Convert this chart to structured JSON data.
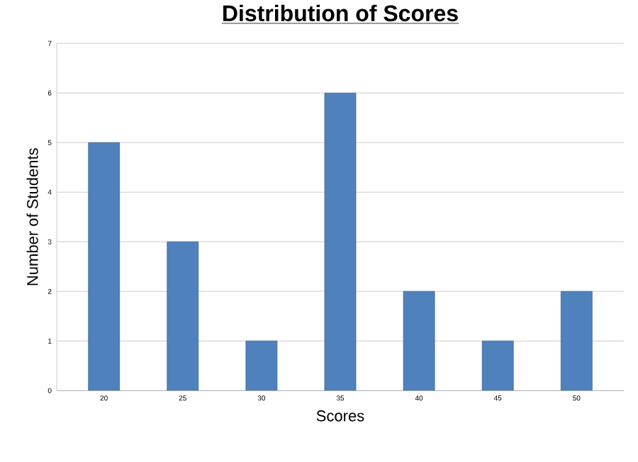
{
  "chart_data": {
    "type": "bar",
    "title": "Distribution of Scores",
    "xlabel": "Scores",
    "ylabel": "Number of Students",
    "categories": [
      "20",
      "25",
      "30",
      "35",
      "40",
      "45",
      "50"
    ],
    "values": [
      5,
      3,
      1,
      6,
      2,
      1,
      2
    ],
    "color": "#4f81bd",
    "ylim": [
      0,
      7
    ],
    "yticks": [
      0,
      1,
      2,
      3,
      4,
      5,
      6,
      7
    ],
    "grid": "y"
  }
}
